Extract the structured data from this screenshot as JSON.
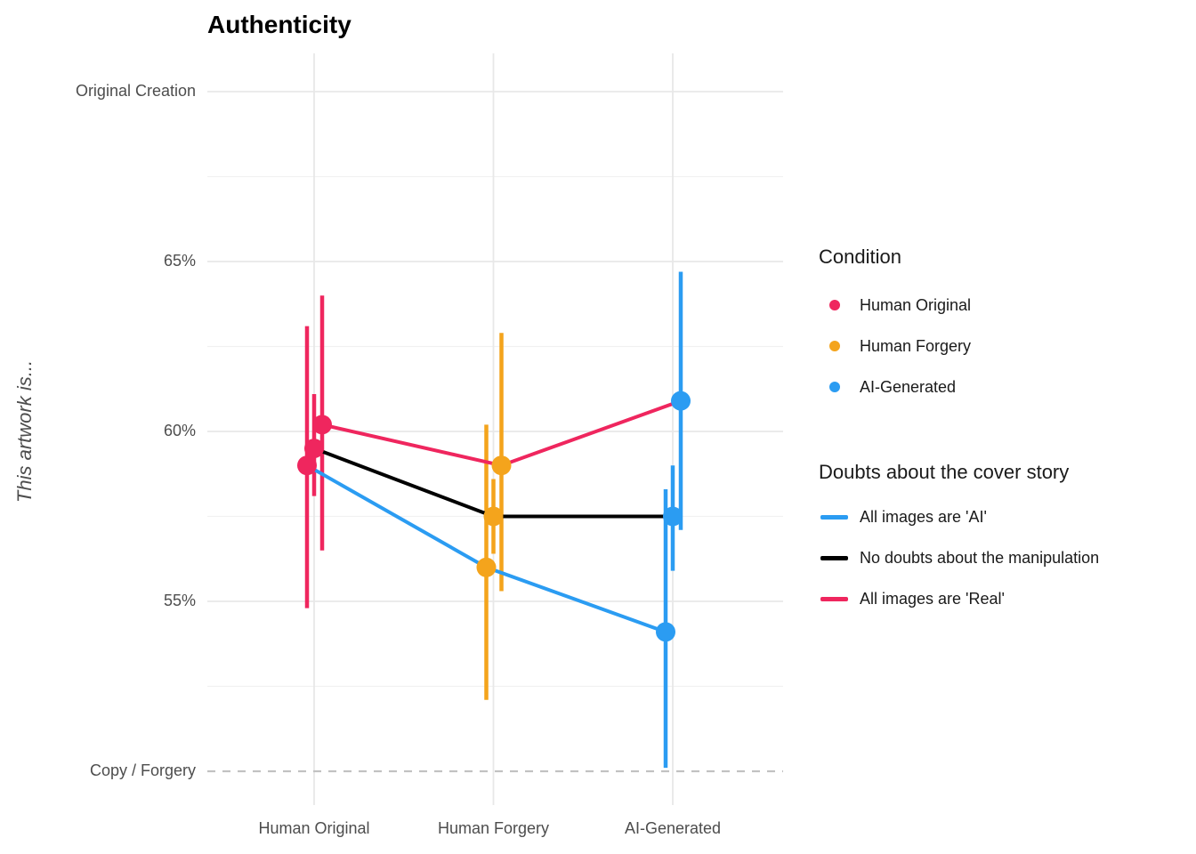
{
  "chart_data": {
    "type": "line",
    "title": "Authenticity",
    "ylabel": "This artwork is...",
    "xlabel": "",
    "categories": [
      "Human Original",
      "Human Forgery",
      "AI-Generated"
    ],
    "category_colors": [
      "#EF265E",
      "#F4A41C",
      "#2B9CF2"
    ],
    "y_axis": {
      "unit": "%",
      "range": [
        50,
        70
      ],
      "ticks": [
        {
          "value": 70,
          "label": "Original Creation"
        },
        {
          "value": 65,
          "label": "65%"
        },
        {
          "value": 60,
          "label": "60%"
        },
        {
          "value": 55,
          "label": "55%"
        },
        {
          "value": 50,
          "label": "Copy / Forgery"
        }
      ],
      "minor_ticks": [
        67.5,
        62.5,
        57.5,
        52.5
      ]
    },
    "reference_line": {
      "value": 50,
      "style": "dashed"
    },
    "series": [
      {
        "name": "All images are 'AI'",
        "color": "#2B9CF2",
        "values": [
          59.0,
          56.0,
          54.1
        ],
        "ci_low": [
          54.8,
          52.1,
          50.1
        ],
        "ci_high": [
          63.1,
          60.2,
          58.3
        ]
      },
      {
        "name": "No doubts about the manipulation",
        "color": "#000000",
        "values": [
          59.5,
          57.5,
          57.5
        ],
        "ci_low": [
          58.1,
          56.4,
          55.9
        ],
        "ci_high": [
          61.1,
          58.6,
          59.0
        ]
      },
      {
        "name": "All images are 'Real'",
        "color": "#EF265E",
        "values": [
          60.2,
          59.0,
          60.9
        ],
        "ci_low": [
          56.5,
          55.3,
          57.1
        ],
        "ci_high": [
          64.0,
          62.9,
          64.7
        ]
      }
    ],
    "legends": [
      {
        "title": "Condition",
        "type": "point",
        "items": [
          {
            "label": "Human Original",
            "color": "#EF265E"
          },
          {
            "label": "Human Forgery",
            "color": "#F4A41C"
          },
          {
            "label": "AI-Generated",
            "color": "#2B9CF2"
          }
        ]
      },
      {
        "title": "Doubts about the cover story",
        "type": "line",
        "items": [
          {
            "label": "All images are 'AI'",
            "color": "#2B9CF2"
          },
          {
            "label": "No doubts about the manipulation",
            "color": "#000000"
          },
          {
            "label": "All images are 'Real'",
            "color": "#EF265E"
          }
        ]
      }
    ],
    "colors": {
      "grid_major": "#E8E8E8",
      "grid_minor": "#F1F1F1",
      "dashed_reference": "#C2C2C2",
      "tick_text": "#4D4D4D",
      "title_text": "#000000"
    }
  }
}
